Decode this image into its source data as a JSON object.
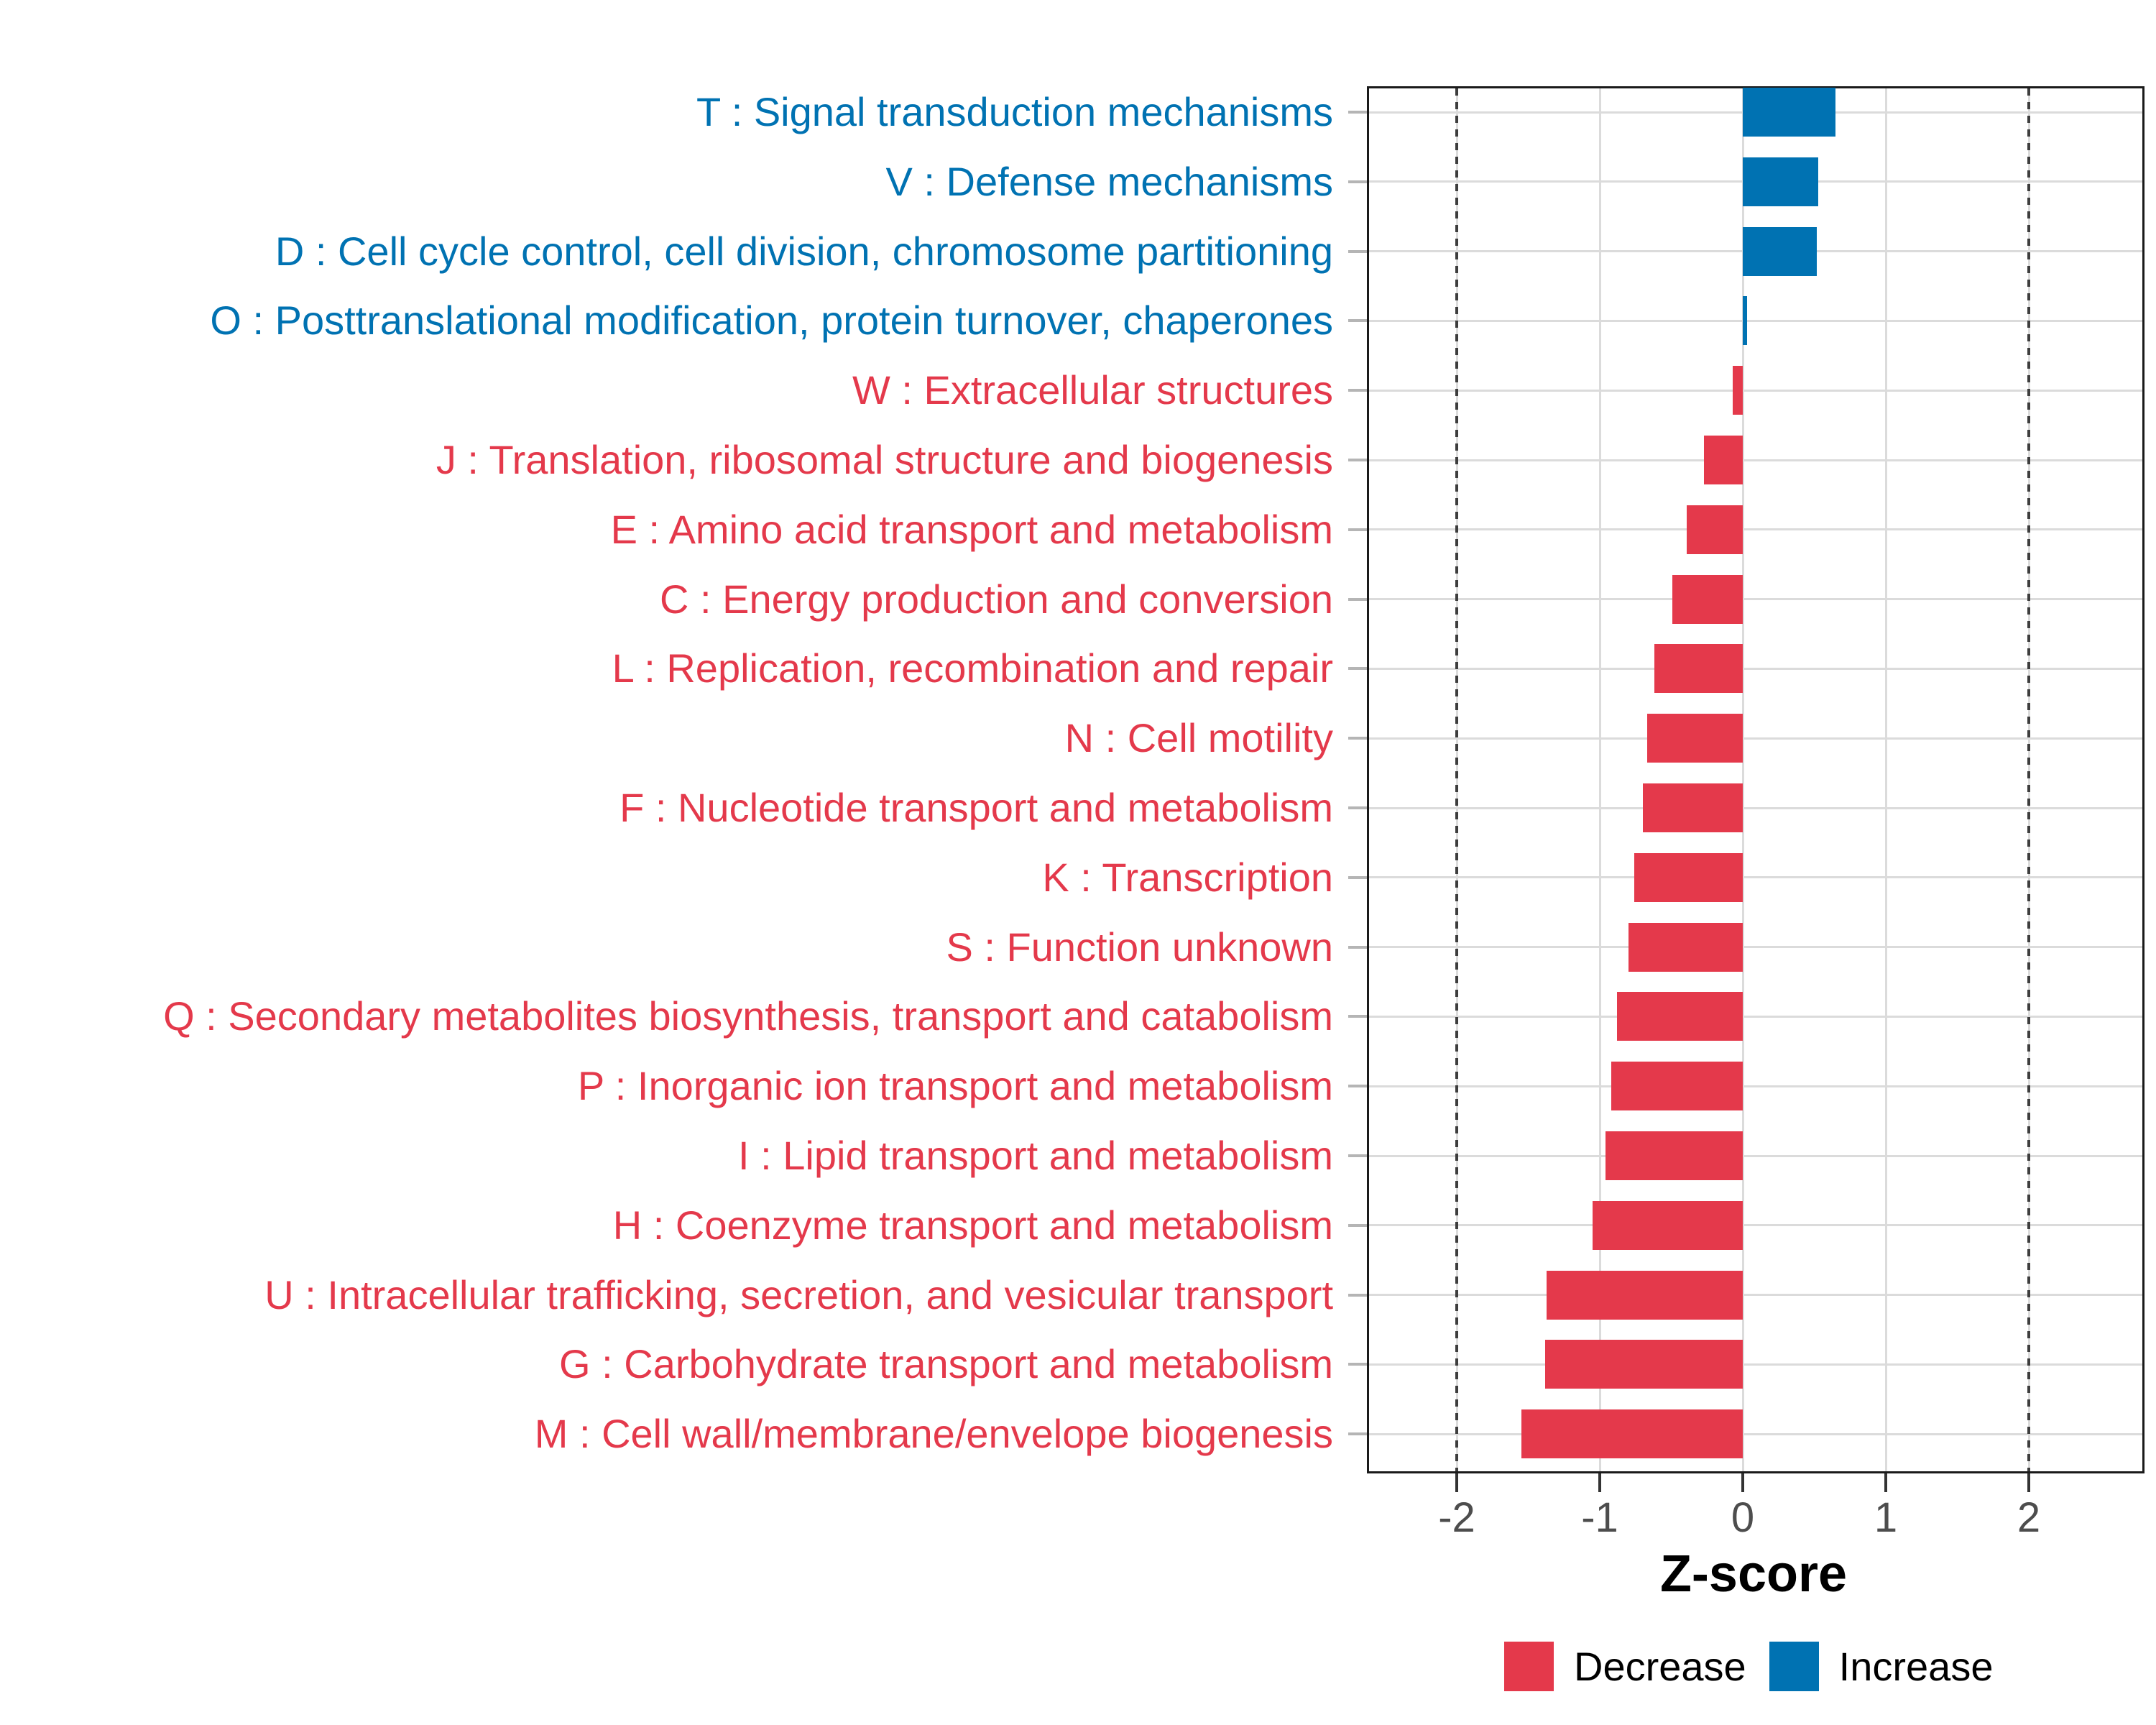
{
  "figure": {
    "background": "#ffffff",
    "panel_border_color": "#1a1a1a",
    "gridline_color": "#dbdbdb"
  },
  "axis": {
    "x_title": "Z-score",
    "x_tick_labels": [
      "-2",
      "-1",
      "0",
      "1",
      "2"
    ]
  },
  "legend": {
    "position": "bottom-right",
    "items": [
      {
        "label": "Decrease",
        "color": "#e4394b"
      },
      {
        "label": "Increase",
        "color": "#0072b2"
      }
    ]
  },
  "chart_data": {
    "type": "bar",
    "orientation": "horizontal",
    "title": "",
    "xlabel": "Z-score",
    "ylabel": "",
    "x_tick_values": [
      -2,
      -1,
      0,
      1,
      2
    ],
    "x_range": [
      -2.61,
      2.79
    ],
    "reference_lines_x": [
      -2,
      2
    ],
    "grid": "major-only",
    "series_colors": {
      "Decrease": "#e4394b",
      "Increase": "#0072b2"
    },
    "categories": [
      {
        "label": "T : Signal transduction mechanisms",
        "value": 0.65,
        "group": "Increase"
      },
      {
        "label": "V : Defense mechanisms",
        "value": 0.53,
        "group": "Increase"
      },
      {
        "label": "D : Cell cycle control, cell division, chromosome partitioning",
        "value": 0.52,
        "group": "Increase"
      },
      {
        "label": "O : Posttranslational modification, protein turnover, chaperones",
        "value": 0.03,
        "group": "Increase"
      },
      {
        "label": "W : Extracellular structures",
        "value": -0.07,
        "group": "Decrease"
      },
      {
        "label": "J : Translation, ribosomal structure and biogenesis",
        "value": -0.27,
        "group": "Decrease"
      },
      {
        "label": "E : Amino acid transport and metabolism",
        "value": -0.39,
        "group": "Decrease"
      },
      {
        "label": "C : Energy production and conversion",
        "value": -0.49,
        "group": "Decrease"
      },
      {
        "label": "L : Replication, recombination and repair",
        "value": -0.62,
        "group": "Decrease"
      },
      {
        "label": "N : Cell motility",
        "value": -0.67,
        "group": "Decrease"
      },
      {
        "label": "F : Nucleotide transport and metabolism",
        "value": -0.7,
        "group": "Decrease"
      },
      {
        "label": "K : Transcription",
        "value": -0.76,
        "group": "Decrease"
      },
      {
        "label": "S : Function unknown",
        "value": -0.8,
        "group": "Decrease"
      },
      {
        "label": "Q : Secondary metabolites biosynthesis, transport and catabolism",
        "value": -0.88,
        "group": "Decrease"
      },
      {
        "label": "P : Inorganic ion transport and metabolism",
        "value": -0.92,
        "group": "Decrease"
      },
      {
        "label": "I : Lipid transport and metabolism",
        "value": -0.96,
        "group": "Decrease"
      },
      {
        "label": "H : Coenzyme transport and metabolism",
        "value": -1.05,
        "group": "Decrease"
      },
      {
        "label": "U : Intracellular trafficking, secretion, and vesicular transport",
        "value": -1.37,
        "group": "Decrease"
      },
      {
        "label": "G : Carbohydrate transport and metabolism",
        "value": -1.38,
        "group": "Decrease"
      },
      {
        "label": "M : Cell wall/membrane/envelope biogenesis",
        "value": -1.55,
        "group": "Decrease"
      }
    ]
  }
}
